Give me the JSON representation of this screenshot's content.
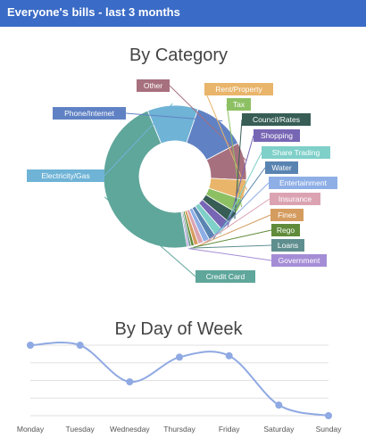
{
  "header": {
    "title": "Everyone's bills - last 3 months"
  },
  "chart_data": [
    {
      "type": "pie",
      "title": "By Category",
      "categories": [
        "Credit Card",
        "Electricity/Gas",
        "Phone/Internet",
        "Other",
        "Rent/Property",
        "Tax",
        "Council/Rates",
        "Shopping",
        "Share Trading",
        "Water",
        "Entertainment",
        "Insurance",
        "Fines",
        "Rego",
        "Loans",
        "Government"
      ],
      "values": [
        46.5,
        11.5,
        12,
        8.5,
        4.5,
        3.2,
        2.7,
        2.3,
        2,
        1.6,
        1.4,
        1.2,
        1,
        0.7,
        0.5,
        0.4
      ],
      "colors": [
        "#5fa69b",
        "#6fb3d6",
        "#6082c4",
        "#a7707e",
        "#e9b56b",
        "#8dc063",
        "#375d55",
        "#7766b4",
        "#7fd0c9",
        "#5984b1",
        "#8eaee6",
        "#dba3b2",
        "#d59c5f",
        "#5f8b3a",
        "#5f8e8f",
        "#a58dd6"
      ]
    },
    {
      "type": "line",
      "title": "By Day of Week",
      "categories": [
        "Monday",
        "Tuesday",
        "Wednesday",
        "Thursday",
        "Friday",
        "Saturday",
        "Sunday"
      ],
      "values": [
        100,
        100,
        48,
        83,
        85,
        15,
        0
      ],
      "ylim": [
        0,
        100
      ],
      "grid": true,
      "line_color": "#8fa9e3"
    }
  ]
}
